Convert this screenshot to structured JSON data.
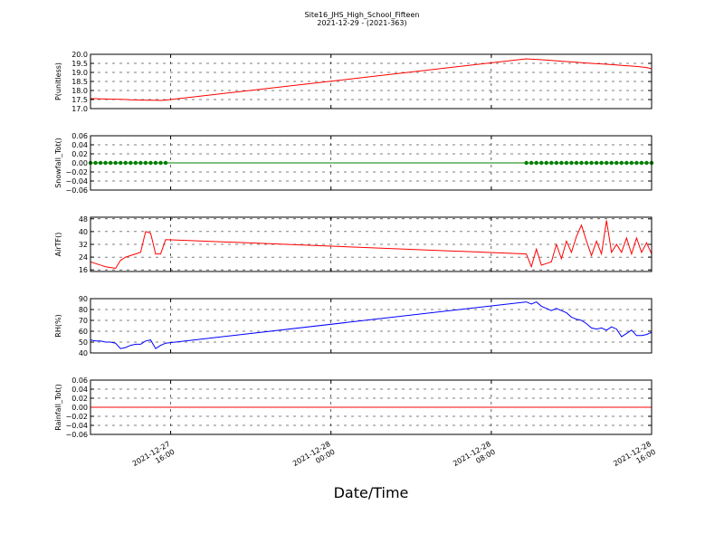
{
  "chart_data": [
    {
      "type": "line",
      "title": "Site16_JHS_High_School_Fifteen",
      "subtitle": "2021-12-29 - (2021-363)",
      "ylabel": "P(unitless)",
      "color": "#ff0000",
      "markers": false,
      "x": [
        "2021-12-27 12:00",
        "2021-12-27 12:15",
        "2021-12-27 12:30",
        "2021-12-27 12:45",
        "2021-12-27 13:00",
        "2021-12-27 13:15",
        "2021-12-27 13:30",
        "2021-12-27 13:45",
        "2021-12-27 14:00",
        "2021-12-27 14:15",
        "2021-12-27 14:30",
        "2021-12-27 14:45",
        "2021-12-27 15:00",
        "2021-12-27 15:15",
        "2021-12-27 15:30",
        "2021-12-27 15:45",
        "2021-12-28 09:45",
        "2021-12-28 10:00",
        "2021-12-28 10:15",
        "2021-12-28 10:30",
        "2021-12-28 10:45",
        "2021-12-28 11:00",
        "2021-12-28 11:15",
        "2021-12-28 11:30",
        "2021-12-28 11:45",
        "2021-12-28 12:00",
        "2021-12-28 12:15",
        "2021-12-28 12:30",
        "2021-12-28 12:45",
        "2021-12-28 13:00",
        "2021-12-28 13:15",
        "2021-12-28 13:30",
        "2021-12-28 13:45",
        "2021-12-28 14:00",
        "2021-12-28 14:15",
        "2021-12-28 14:30",
        "2021-12-28 14:45",
        "2021-12-28 15:00",
        "2021-12-28 15:15",
        "2021-12-28 15:30",
        "2021-12-28 15:45",
        "2021-12-28 16:00"
      ],
      "values": [
        17.55,
        17.55,
        17.54,
        17.53,
        17.52,
        17.52,
        17.51,
        17.5,
        17.49,
        17.48,
        17.47,
        17.47,
        17.46,
        17.46,
        17.45,
        17.47,
        19.75,
        19.73,
        19.72,
        19.7,
        19.68,
        19.66,
        19.64,
        19.62,
        19.6,
        19.58,
        19.56,
        19.54,
        19.52,
        19.5,
        19.48,
        19.47,
        19.45,
        19.43,
        19.41,
        19.39,
        19.37,
        19.35,
        19.33,
        19.3,
        19.27,
        19.2
      ],
      "xlim": [
        "2021-12-27 12:00",
        "2021-12-28 16:00"
      ],
      "ylim": [
        17,
        20
      ],
      "yticks": [
        {
          "value": 17,
          "label": "17.0"
        },
        17.5,
        {
          "value": 18,
          "label": "18.0"
        },
        18.5,
        {
          "value": 19,
          "label": "19.0"
        },
        19.5,
        {
          "value": 20,
          "label": "20.0"
        }
      ],
      "grid": true
    },
    {
      "type": "line",
      "ylabel": "Snowfall_Tot()",
      "color": "#008000",
      "markers": true,
      "x": [
        "2021-12-27 12:00",
        "2021-12-27 12:15",
        "2021-12-27 12:30",
        "2021-12-27 12:45",
        "2021-12-27 13:00",
        "2021-12-27 13:15",
        "2021-12-27 13:30",
        "2021-12-27 13:45",
        "2021-12-27 14:00",
        "2021-12-27 14:15",
        "2021-12-27 14:30",
        "2021-12-27 14:45",
        "2021-12-27 15:00",
        "2021-12-27 15:15",
        "2021-12-27 15:30",
        "2021-12-27 15:45",
        "2021-12-28 09:45",
        "2021-12-28 10:00",
        "2021-12-28 10:15",
        "2021-12-28 10:30",
        "2021-12-28 10:45",
        "2021-12-28 11:00",
        "2021-12-28 11:15",
        "2021-12-28 11:30",
        "2021-12-28 11:45",
        "2021-12-28 12:00",
        "2021-12-28 12:15",
        "2021-12-28 12:30",
        "2021-12-28 12:45",
        "2021-12-28 13:00",
        "2021-12-28 13:15",
        "2021-12-28 13:30",
        "2021-12-28 13:45",
        "2021-12-28 14:00",
        "2021-12-28 14:15",
        "2021-12-28 14:30",
        "2021-12-28 14:45",
        "2021-12-28 15:00",
        "2021-12-28 15:15",
        "2021-12-28 15:30",
        "2021-12-28 15:45",
        "2021-12-28 16:00"
      ],
      "values": [
        0,
        0,
        0,
        0,
        0,
        0,
        0,
        0,
        0,
        0,
        0,
        0,
        0,
        0,
        0,
        0,
        0,
        0,
        0,
        0,
        0,
        0,
        0,
        0,
        0,
        0,
        0,
        0,
        0,
        0,
        0,
        0,
        0,
        0,
        0,
        0,
        0,
        0,
        0,
        0,
        0,
        0
      ],
      "xlim": [
        "2021-12-27 12:00",
        "2021-12-28 16:00"
      ],
      "ylim": [
        -0.06,
        0.06
      ],
      "yticks": [
        {
          "value": -0.06,
          "label": "−0.06"
        },
        {
          "value": -0.04,
          "label": "−0.04"
        },
        {
          "value": -0.02,
          "label": "−0.02"
        },
        {
          "value": 0,
          "label": "0.00"
        },
        0.02,
        0.04,
        0.06
      ],
      "grid": true
    },
    {
      "type": "line",
      "ylabel": "AirTF()",
      "color": "#ff0000",
      "markers": false,
      "x": [
        "2021-12-27 12:00",
        "2021-12-27 12:15",
        "2021-12-27 12:30",
        "2021-12-27 12:45",
        "2021-12-27 13:00",
        "2021-12-27 13:15",
        "2021-12-27 13:30",
        "2021-12-27 13:45",
        "2021-12-27 14:00",
        "2021-12-27 14:15",
        "2021-12-27 14:30",
        "2021-12-27 14:45",
        "2021-12-27 15:00",
        "2021-12-27 15:15",
        "2021-12-27 15:30",
        "2021-12-27 15:45",
        "2021-12-28 09:45",
        "2021-12-28 10:00",
        "2021-12-28 10:15",
        "2021-12-28 10:30",
        "2021-12-28 10:45",
        "2021-12-28 11:00",
        "2021-12-28 11:15",
        "2021-12-28 11:30",
        "2021-12-28 11:45",
        "2021-12-28 12:00",
        "2021-12-28 12:15",
        "2021-12-28 12:30",
        "2021-12-28 12:45",
        "2021-12-28 13:00",
        "2021-12-28 13:15",
        "2021-12-28 13:30",
        "2021-12-28 13:45",
        "2021-12-28 14:00",
        "2021-12-28 14:15",
        "2021-12-28 14:30",
        "2021-12-28 14:45",
        "2021-12-28 15:00",
        "2021-12-28 15:15",
        "2021-12-28 15:30",
        "2021-12-28 15:45",
        "2021-12-28 16:00"
      ],
      "values": [
        21,
        20,
        19,
        18,
        17.5,
        17,
        22,
        24,
        25,
        26,
        27,
        40,
        39,
        26,
        26,
        35,
        26,
        18,
        29,
        19,
        20,
        21,
        32,
        23,
        34,
        27,
        37,
        44,
        34,
        25,
        34,
        26,
        47,
        27,
        32,
        27,
        36,
        26,
        36,
        27,
        33,
        26
      ],
      "xlim": [
        "2021-12-27 12:00",
        "2021-12-28 16:00"
      ],
      "ylim": [
        15,
        49
      ],
      "yticks": [
        16,
        24,
        32,
        40,
        48
      ],
      "grid": true
    },
    {
      "type": "line",
      "ylabel": "RH(%)",
      "color": "#0000ff",
      "markers": false,
      "x": [
        "2021-12-27 12:00",
        "2021-12-27 12:15",
        "2021-12-27 12:30",
        "2021-12-27 12:45",
        "2021-12-27 13:00",
        "2021-12-27 13:15",
        "2021-12-27 13:30",
        "2021-12-27 13:45",
        "2021-12-27 14:00",
        "2021-12-27 14:15",
        "2021-12-27 14:30",
        "2021-12-27 14:45",
        "2021-12-27 15:00",
        "2021-12-27 15:15",
        "2021-12-27 15:30",
        "2021-12-27 15:45",
        "2021-12-28 09:45",
        "2021-12-28 10:00",
        "2021-12-28 10:15",
        "2021-12-28 10:30",
        "2021-12-28 10:45",
        "2021-12-28 11:00",
        "2021-12-28 11:15",
        "2021-12-28 11:30",
        "2021-12-28 11:45",
        "2021-12-28 12:00",
        "2021-12-28 12:15",
        "2021-12-28 12:30",
        "2021-12-28 12:45",
        "2021-12-28 13:00",
        "2021-12-28 13:15",
        "2021-12-28 13:30",
        "2021-12-28 13:45",
        "2021-12-28 14:00",
        "2021-12-28 14:15",
        "2021-12-28 14:30",
        "2021-12-28 14:45",
        "2021-12-28 15:00",
        "2021-12-28 15:15",
        "2021-12-28 15:30",
        "2021-12-28 15:45",
        "2021-12-28 16:00"
      ],
      "values": [
        52,
        51,
        51,
        50,
        50,
        49,
        44,
        45,
        47,
        48,
        48,
        51,
        52,
        44,
        47,
        49,
        87,
        85,
        87,
        83,
        81,
        79,
        81,
        79,
        77,
        73,
        71,
        70,
        67,
        63,
        62,
        63,
        61,
        64,
        62,
        55,
        58,
        61,
        56,
        56,
        57,
        59
      ],
      "xlim": [
        "2021-12-27 12:00",
        "2021-12-28 16:00"
      ],
      "ylim": [
        40,
        90
      ],
      "yticks": [
        40,
        50,
        60,
        70,
        80,
        90
      ],
      "grid": true
    },
    {
      "type": "line",
      "ylabel": "Rainfall_Tot()",
      "xlabel": "Date/Time",
      "color": "#ff0000",
      "markers": false,
      "x": [
        "2021-12-27 12:00",
        "2021-12-27 12:15",
        "2021-12-27 12:30",
        "2021-12-27 12:45",
        "2021-12-27 13:00",
        "2021-12-27 13:15",
        "2021-12-27 13:30",
        "2021-12-27 13:45",
        "2021-12-27 14:00",
        "2021-12-27 14:15",
        "2021-12-27 14:30",
        "2021-12-27 14:45",
        "2021-12-27 15:00",
        "2021-12-27 15:15",
        "2021-12-27 15:30",
        "2021-12-27 15:45",
        "2021-12-28 09:45",
        "2021-12-28 10:00",
        "2021-12-28 10:15",
        "2021-12-28 10:30",
        "2021-12-28 10:45",
        "2021-12-28 11:00",
        "2021-12-28 11:15",
        "2021-12-28 11:30",
        "2021-12-28 11:45",
        "2021-12-28 12:00",
        "2021-12-28 12:15",
        "2021-12-28 12:30",
        "2021-12-28 12:45",
        "2021-12-28 13:00",
        "2021-12-28 13:15",
        "2021-12-28 13:30",
        "2021-12-28 13:45",
        "2021-12-28 14:00",
        "2021-12-28 14:15",
        "2021-12-28 14:30",
        "2021-12-28 14:45",
        "2021-12-28 15:00",
        "2021-12-28 15:15",
        "2021-12-28 15:30",
        "2021-12-28 15:45",
        "2021-12-28 16:00"
      ],
      "values": [
        0,
        0,
        0,
        0,
        0,
        0,
        0,
        0,
        0,
        0,
        0,
        0,
        0,
        0,
        0,
        0,
        0,
        0,
        0,
        0,
        0,
        0,
        0,
        0,
        0,
        0,
        0,
        0,
        0,
        0,
        0,
        0,
        0,
        0,
        0,
        0,
        0,
        0,
        0,
        0,
        0,
        0
      ],
      "xlim": [
        "2021-12-27 12:00",
        "2021-12-28 16:00"
      ],
      "ylim": [
        -0.06,
        0.06
      ],
      "yticks": [
        {
          "value": -0.06,
          "label": "−0.06"
        },
        {
          "value": -0.04,
          "label": "−0.04"
        },
        {
          "value": -0.02,
          "label": "−0.02"
        },
        {
          "value": 0,
          "label": "0.00"
        },
        0.02,
        0.04,
        0.06
      ],
      "xticks": [
        {
          "value": "2021-12-27 16:00",
          "label": "2021-12-27\n16:00"
        },
        {
          "value": "2021-12-28 00:00",
          "label": "2021-12-28\n00:00"
        },
        {
          "value": "2021-12-28 08:00",
          "label": "2021-12-28\n08:00"
        },
        {
          "value": "2021-12-28 16:00",
          "label": "2021-12-28\n16:00"
        }
      ],
      "grid": true
    }
  ]
}
